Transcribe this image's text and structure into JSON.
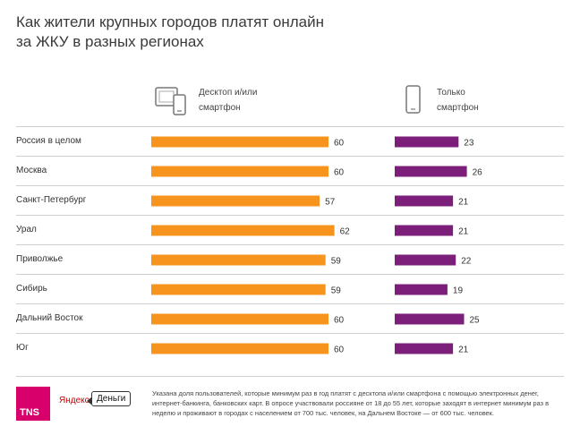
{
  "title_lines": [
    "Как жители крупных городов платят онлайн",
    "за ЖКУ в разных регионах"
  ],
  "legend": {
    "desktop": {
      "lines": [
        "Десктоп и/или",
        "смартфон"
      ],
      "icon": "desktop-smartphone-icon",
      "color": "#f7941d"
    },
    "smartphone": {
      "lines": [
        "Только",
        "смартфон"
      ],
      "icon": "smartphone-icon",
      "color": "#7b1f7a"
    }
  },
  "chart_data": {
    "type": "bar",
    "categories": [
      "Россия в целом",
      "Москва",
      "Санкт-Петербург",
      "Урал",
      "Приволжье",
      "Сибирь",
      "Дальний Восток",
      "Юг"
    ],
    "series": [
      {
        "name": "Десктоп и/или смартфон",
        "values": [
          60,
          60,
          57,
          62,
          59,
          59,
          60,
          60
        ],
        "color": "#f7941d"
      },
      {
        "name": "Только смартфон",
        "values": [
          23,
          26,
          21,
          21,
          22,
          19,
          25,
          21
        ],
        "color": "#7b1f7a"
      }
    ]
  },
  "footer": {
    "tns_logo": "TNS",
    "yandex_logo": "Яндекс",
    "money_logo": "Деньги",
    "note": "Указана доля пользователей, которые минимум раз в год платят с десктопа и/или смартфона с помощью электронных денег, интернет-банкинга, банковских карт. В опросе участвовали россияне от 18 до 55 лет, которые заходят в интернет минимум раз в неделю и проживают в городах с населением от 700 тыс. человек, на Дальнем Востоке — от 600 тыс. человек."
  }
}
